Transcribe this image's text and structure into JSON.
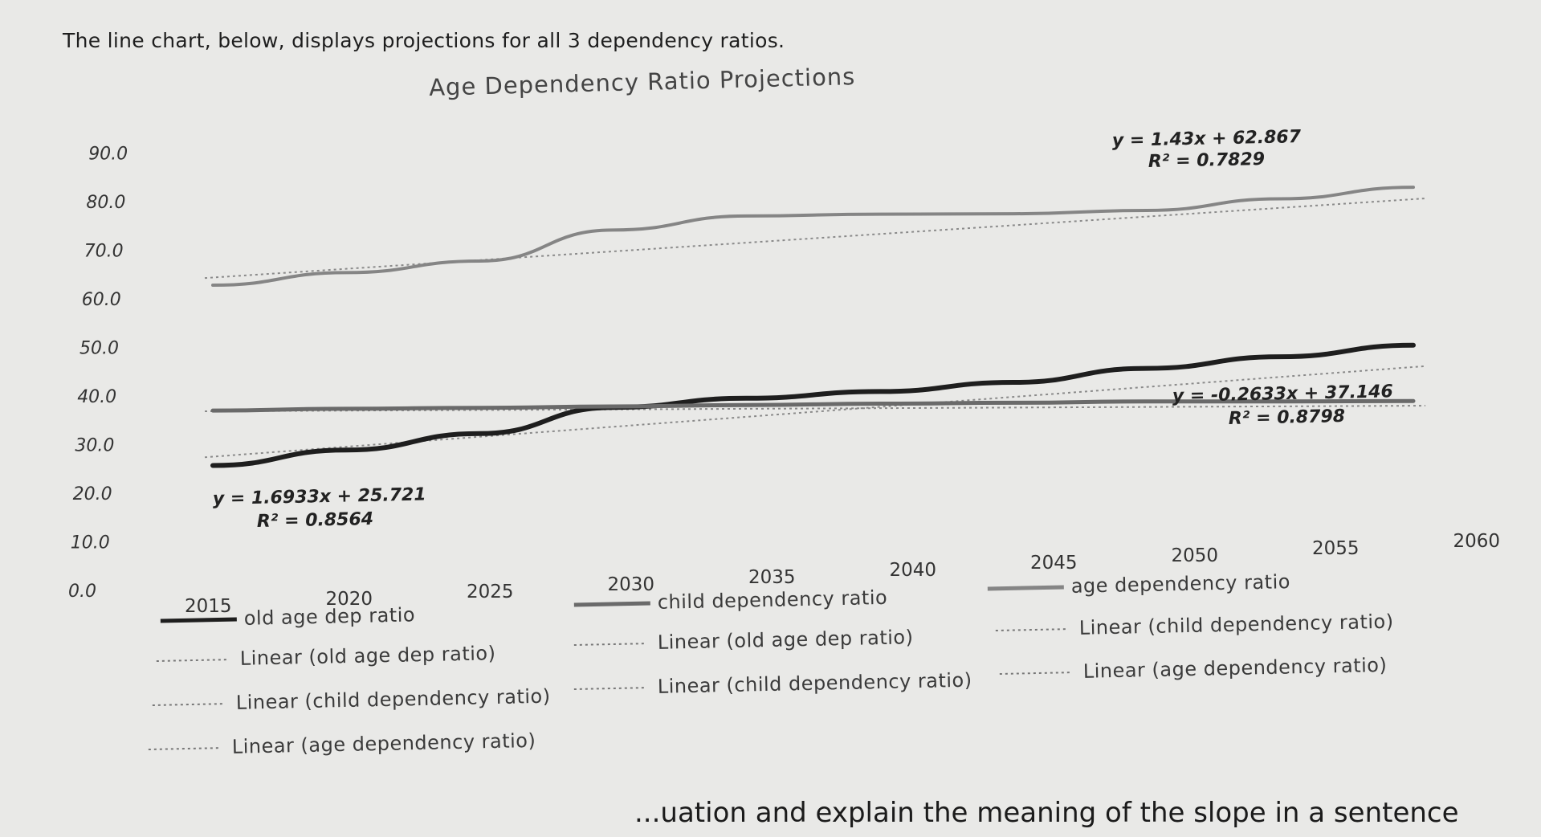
{
  "intro_text": "The line chart, below, displays projections for all 3 dependency ratios.",
  "bottom_text": "...uation and explain the meaning of the slope in a sentence",
  "chart_data": {
    "type": "line",
    "title": "Age Dependency Ratio Projections",
    "xlabel": "",
    "ylabel": "",
    "categories": [
      "2015",
      "2020",
      "2025",
      "2030",
      "2035",
      "2040",
      "2045",
      "2050",
      "2055",
      "2060"
    ],
    "y_ticks": [
      "0.0",
      "10.0",
      "20.0",
      "30.0",
      "40.0",
      "50.0",
      "60.0",
      "70.0",
      "80.0",
      "90.0"
    ],
    "ylim": [
      0,
      90
    ],
    "grid": false,
    "legend_position": "bottom",
    "series": [
      {
        "name": "old age dep ratio",
        "values": [
          25.7,
          28.5,
          31.5,
          36.5,
          38.0,
          39.0,
          40.5,
          43.0,
          45.0,
          47.0
        ],
        "color": "#1e1e1e"
      },
      {
        "name": "child dependency ratio",
        "values": [
          37.0,
          37.0,
          36.8,
          36.7,
          36.6,
          36.5,
          36.3,
          36.2,
          35.8,
          35.5
        ],
        "color": "#6a6a6a"
      },
      {
        "name": "age dependency ratio",
        "values": [
          62.8,
          65.0,
          67.0,
          73.0,
          75.5,
          75.5,
          75.2,
          75.5,
          77.5,
          79.5
        ],
        "color": "#858585"
      }
    ],
    "trendlines": [
      {
        "series": "old age dep ratio",
        "equation": "y = 1.6933x + 25.721",
        "r2": "R² = 0.8564"
      },
      {
        "series": "child dependency ratio",
        "equation": "y = -0.2633x + 37.146",
        "r2": "R² = 0.8798"
      },
      {
        "series": "age dependency ratio",
        "equation": "y = 1.43x + 62.867",
        "r2": "R² = 0.7829"
      }
    ],
    "legend": [
      "old age dep ratio",
      "child dependency ratio",
      "age dependency ratio",
      "Linear (old age dep ratio)",
      "Linear (old age dep ratio)",
      "Linear (child dependency ratio)",
      "Linear (child dependency ratio)",
      "Linear (child dependency ratio)",
      "Linear (age dependency ratio)",
      "Linear (age dependency ratio)"
    ]
  }
}
